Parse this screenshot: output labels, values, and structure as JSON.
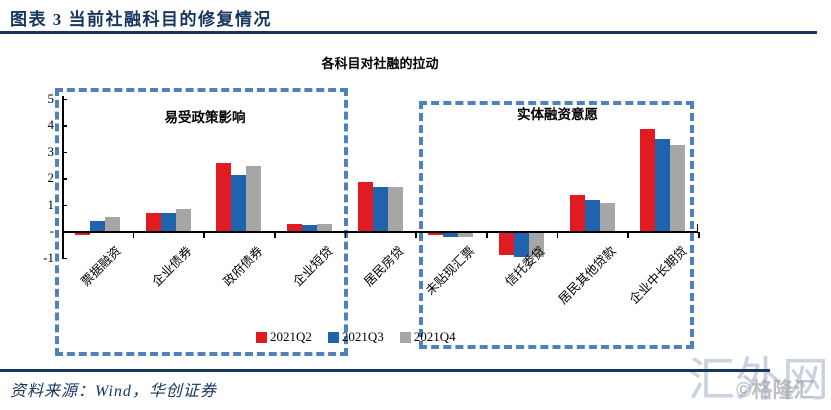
{
  "header": {
    "title": "图表 3  当前社融科目的修复情况"
  },
  "chart_data": {
    "type": "bar",
    "title": "各科目对社融的拉动",
    "categories": [
      "票据融资",
      "企业债券",
      "政府债券",
      "企业短贷",
      "居民房贷",
      "未贴现汇票",
      "信托委贷",
      "居民其他贷款",
      "企业中长期贷"
    ],
    "series": [
      {
        "name": "2021Q2",
        "color": "#e11b22",
        "values": [
          -0.1,
          0.7,
          2.6,
          0.3,
          1.9,
          -0.1,
          -0.85,
          1.4,
          3.9
        ]
      },
      {
        "name": "2021Q3",
        "color": "#1f63ae",
        "values": [
          0.4,
          0.7,
          2.15,
          0.25,
          1.7,
          -0.2,
          -0.95,
          1.2,
          3.5
        ]
      },
      {
        "name": "2021Q4",
        "color": "#a6a6a6",
        "values": [
          0.55,
          0.85,
          2.5,
          0.3,
          1.7,
          -0.2,
          -0.95,
          1.1,
          3.3
        ]
      }
    ],
    "ylim": [
      -1,
      5
    ],
    "yticks": [
      {
        "v": 5,
        "label": "5"
      },
      {
        "v": 4,
        "label": "4"
      },
      {
        "v": 3,
        "label": "3"
      },
      {
        "v": 2,
        "label": "2"
      },
      {
        "v": 1,
        "label": "1"
      },
      {
        "v": 0,
        "label": "-"
      },
      {
        "v": -1,
        "label": "-1"
      }
    ],
    "grid": "off",
    "legend_position": "bottom-center",
    "group_annotations": [
      {
        "label": "易受政策影响"
      },
      {
        "label": "实体融资意愿"
      }
    ]
  },
  "footer": {
    "source": "资料来源：Wind，华创证券"
  },
  "watermarks": {
    "primary": "汇外网",
    "secondary": "©格隆汇"
  },
  "colors": {
    "accent_navy": "#17365d",
    "box_dash_blue": "#4f81bd",
    "series_2021q2": "#e11b22",
    "series_2021q3": "#1f63ae",
    "series_2021q4": "#a6a6a6"
  }
}
